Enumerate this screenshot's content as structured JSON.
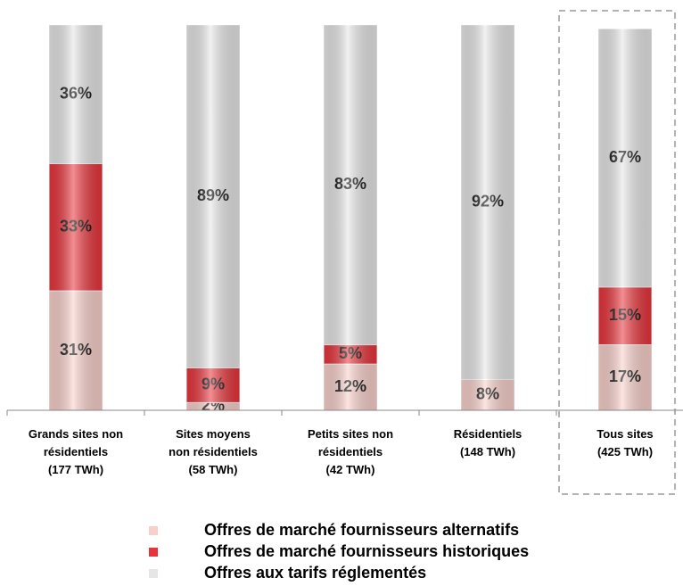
{
  "chart_data": {
    "type": "stacked_bar",
    "categories": [
      "Grands sites non\nrésidentiels\n(177 TWh)",
      "Sites moyens\nnon résidentiels\n(58 TWh)",
      "Petits sites non\nrésidentiels\n(42 TWh)",
      "Résidentiels\n(148 TWh)",
      "Tous sites\n(425 TWh)"
    ],
    "series": [
      {
        "name": "Offres de marché fournisseurs alternatifs",
        "color": "#f9cfc9",
        "values": [
          31,
          2,
          12,
          8,
          17
        ],
        "value_labels": [
          "31%",
          "2%",
          "12%",
          "8%",
          "17%"
        ]
      },
      {
        "name": "Offres de marché fournisseurs historiques",
        "color": "#e8333a",
        "values": [
          33,
          9,
          5,
          0,
          15
        ],
        "value_labels": [
          "33%",
          "9%",
          "5%",
          null,
          "15%"
        ]
      },
      {
        "name": "Offres aux tarifs réglementés",
        "color": "#e6e6e6",
        "values": [
          36,
          89,
          83,
          92,
          67
        ],
        "value_labels": [
          "36%",
          "89%",
          "83%",
          "92%",
          "67%"
        ]
      }
    ],
    "ylim": [
      0,
      100
    ]
  }
}
